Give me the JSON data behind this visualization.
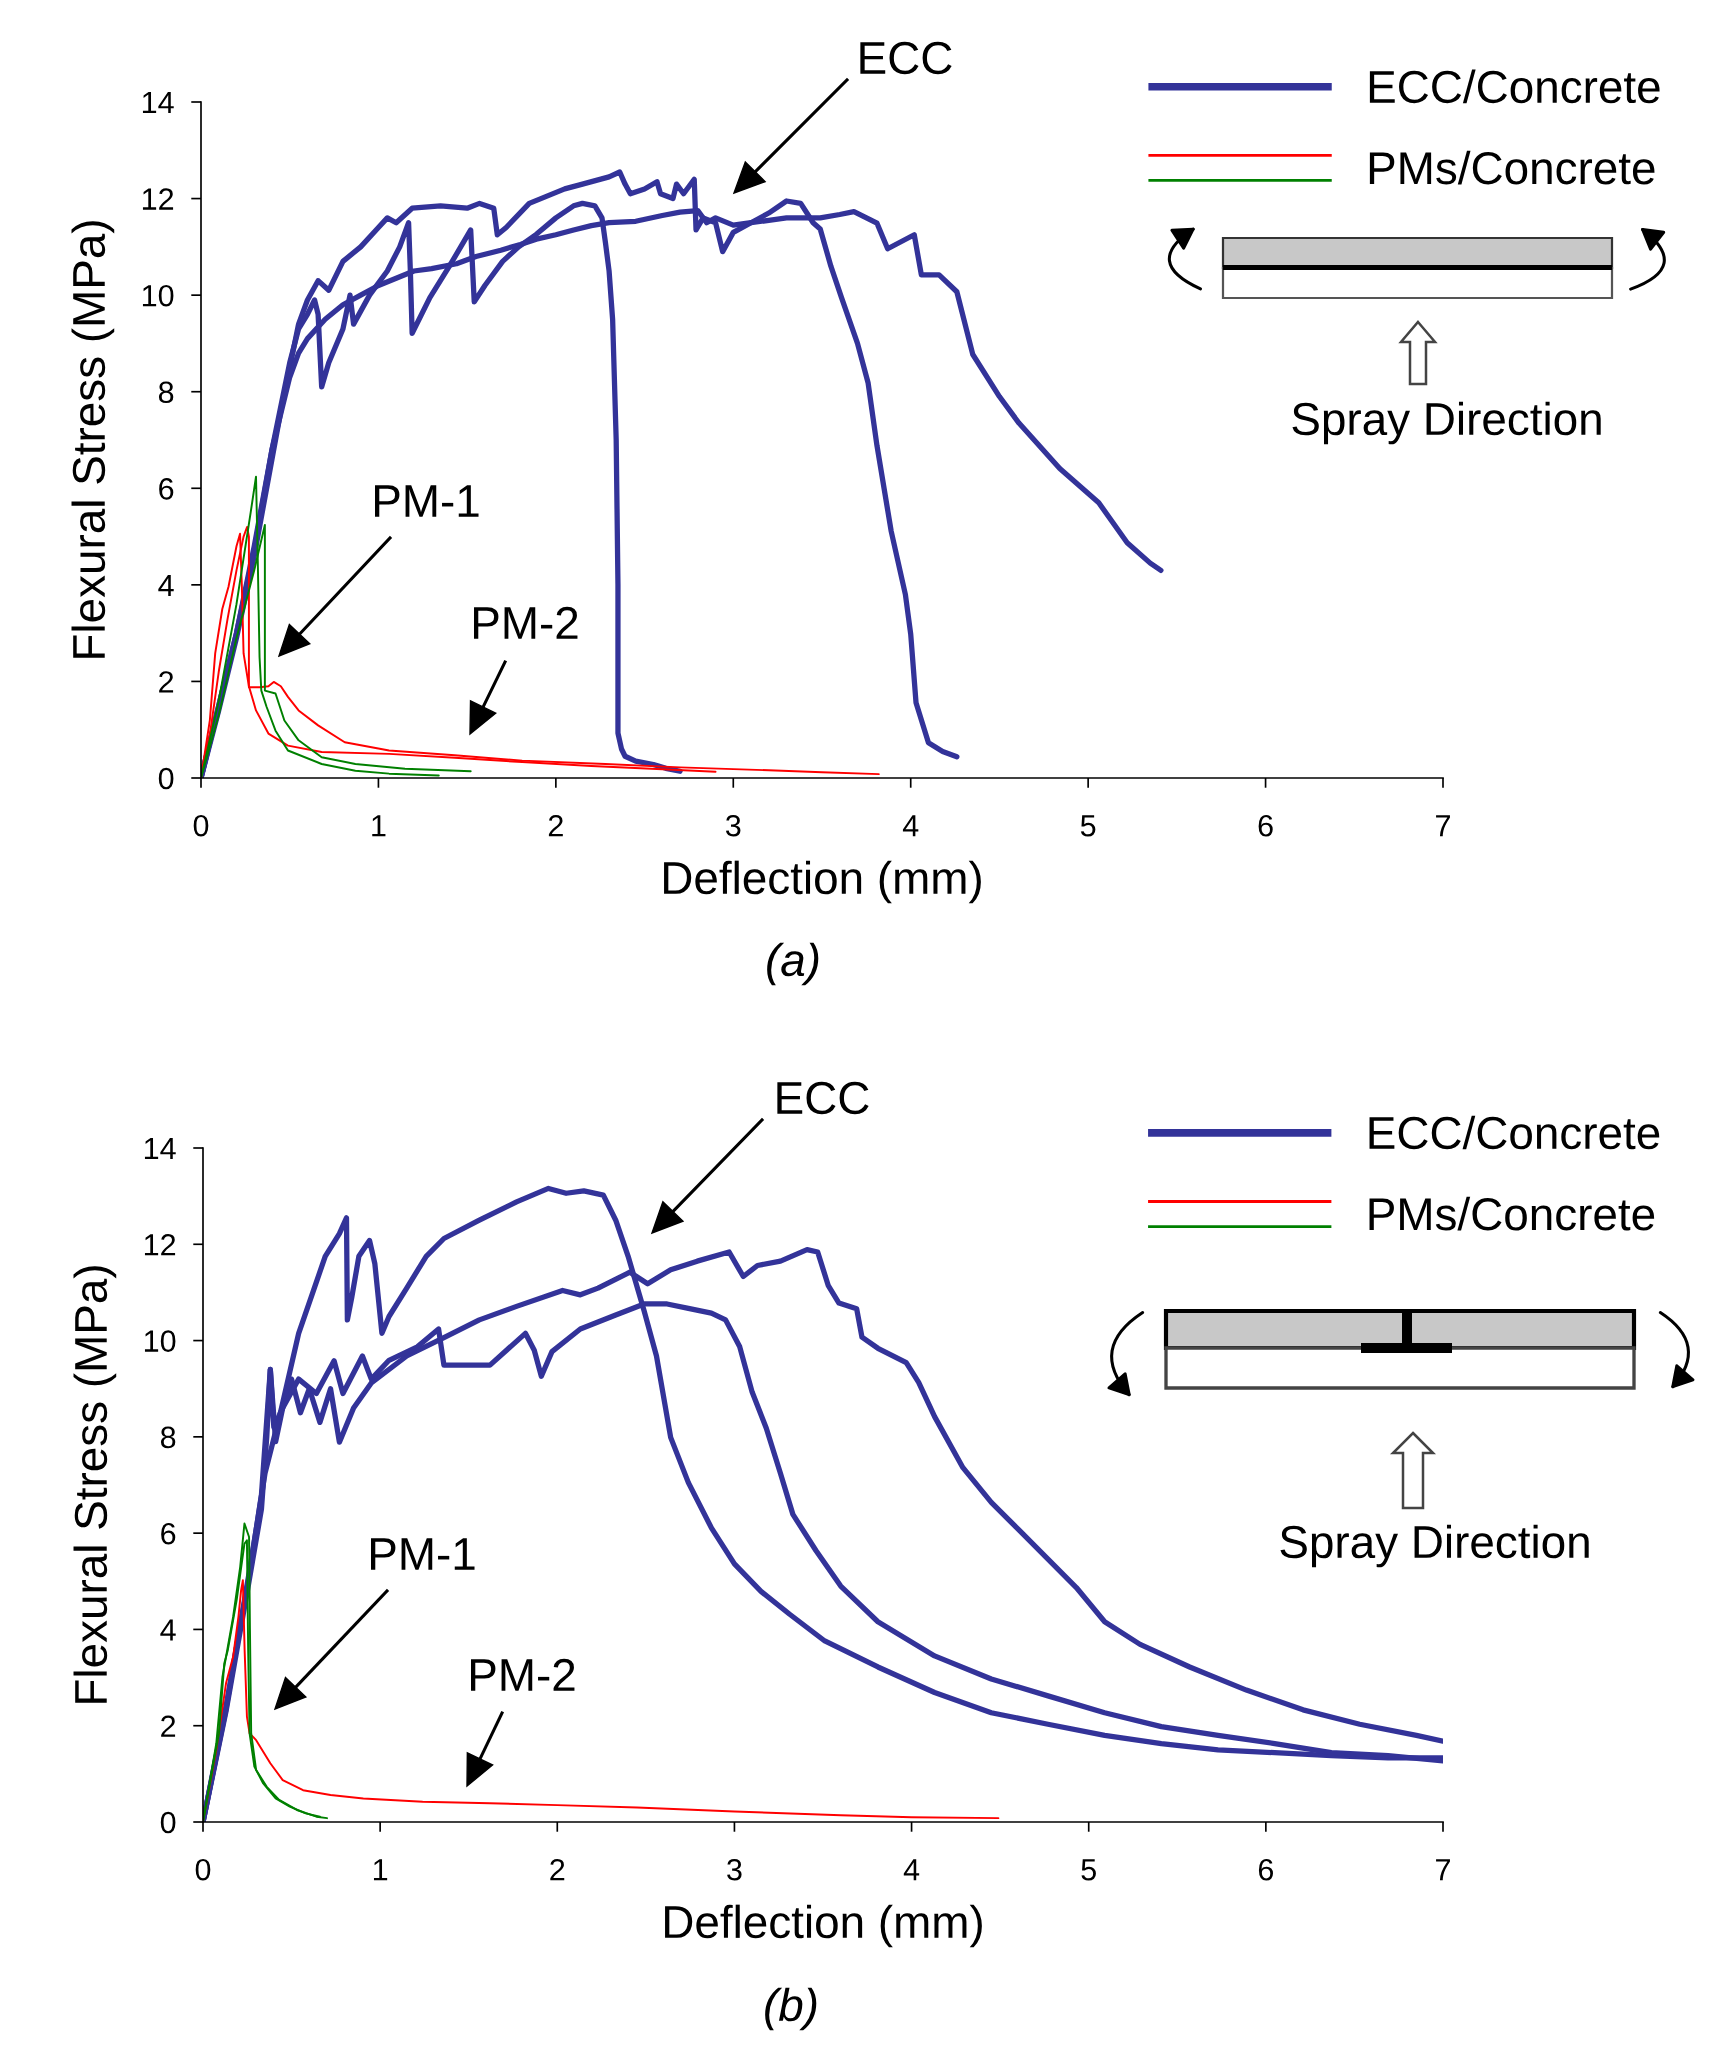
{
  "chart_data": [
    {
      "type": "line",
      "xlabel": "Deflection (mm)",
      "ylabel": "Flexural Stress (MPa)",
      "xlim": [
        0,
        7
      ],
      "ylim": [
        0,
        14
      ],
      "xticks": [
        0,
        1,
        2,
        3,
        4,
        5,
        6,
        7
      ],
      "yticks": [
        0,
        2,
        4,
        6,
        8,
        10,
        12,
        14
      ],
      "legend": "top right",
      "series": [
        {
          "name": "ECC/Concrete",
          "color": "#333399",
          "x": [
            0,
            0.1,
            0.2,
            0.3,
            0.4,
            0.45,
            0.5,
            0.55,
            0.6,
            0.66,
            0.72,
            0.8,
            0.9,
            1.0,
            1.05,
            1.1,
            1.19,
            1.35,
            1.5,
            1.57,
            1.65,
            1.67,
            1.72,
            1.85,
            1.95,
            2.05,
            2.15,
            2.3,
            2.36,
            2.39,
            2.42,
            2.5,
            2.57,
            2.59,
            2.66,
            2.68,
            2.72,
            2.78,
            2.79,
            2.83,
            2.9,
            2.94,
            3.0,
            3.1,
            3.2,
            3.3,
            3.38,
            3.45,
            3.49,
            3.55,
            3.61,
            3.7,
            3.76,
            3.81,
            3.89,
            3.97,
            4.0,
            4.03,
            4.1,
            4.18,
            4.26
          ],
          "values": [
            0,
            1.4,
            2.9,
            4.6,
            6.6,
            7.6,
            8.5,
            9.4,
            9.9,
            10.3,
            10.1,
            10.7,
            11.0,
            11.4,
            11.6,
            11.5,
            11.8,
            11.85,
            11.8,
            11.9,
            11.8,
            11.25,
            11.4,
            11.9,
            12.05,
            12.2,
            12.3,
            12.45,
            12.55,
            12.3,
            12.1,
            12.2,
            12.35,
            12.1,
            12.0,
            12.3,
            12.1,
            12.4,
            11.35,
            11.6,
            11.5,
            10.9,
            11.3,
            11.5,
            11.7,
            11.95,
            11.9,
            11.5,
            11.37,
            10.6,
            9.95,
            9.0,
            8.18,
            6.88,
            5.11,
            3.8,
            2.98,
            1.56,
            0.73,
            0.55,
            0.44
          ]
        },
        {
          "color": "#333399",
          "x": [
            0,
            0.1,
            0.2,
            0.3,
            0.4,
            0.5,
            0.55,
            0.6,
            0.64,
            0.66,
            0.68,
            0.72,
            0.8,
            0.84,
            0.86,
            0.95,
            1.05,
            1.12,
            1.17,
            1.18,
            1.19,
            1.29,
            1.4,
            1.52,
            1.54,
            1.6,
            1.7,
            1.79,
            1.89,
            2.0,
            2.1,
            2.15,
            2.22,
            2.26,
            2.28,
            2.3,
            2.32,
            2.34,
            2.35,
            2.35,
            2.37,
            2.39,
            2.45,
            2.55,
            2.62,
            2.7
          ],
          "values": [
            0,
            1.5,
            3.0,
            4.7,
            6.8,
            8.6,
            9.3,
            9.6,
            9.9,
            9.6,
            8.1,
            8.6,
            9.3,
            10.0,
            9.4,
            10.0,
            10.5,
            11.0,
            11.5,
            10.5,
            9.21,
            9.95,
            10.6,
            11.35,
            9.86,
            10.2,
            10.7,
            11.0,
            11.26,
            11.6,
            11.85,
            11.9,
            11.85,
            11.6,
            11.07,
            10.5,
            9.49,
            7.0,
            4.0,
            0.93,
            0.6,
            0.45,
            0.35,
            0.28,
            0.2,
            0.14
          ]
        },
        {
          "color": "#333399",
          "x": [
            0,
            0.1,
            0.2,
            0.3,
            0.4,
            0.5,
            0.55,
            0.6,
            0.7,
            0.8,
            0.9,
            1.0,
            1.1,
            1.2,
            1.3,
            1.44,
            1.55,
            1.69,
            1.8,
            1.89,
            2.0,
            2.1,
            2.2,
            2.3,
            2.45,
            2.6,
            2.7,
            2.8,
            2.85,
            2.9,
            3.0,
            3.1,
            3.2,
            3.3,
            3.49,
            3.6,
            3.68,
            3.81,
            3.87,
            4.02,
            4.06,
            4.16,
            4.26,
            4.35,
            4.5,
            4.61,
            4.84,
            5.06,
            5.22,
            5.35,
            5.41
          ],
          "values": [
            0,
            1.5,
            3.0,
            4.8,
            6.8,
            8.3,
            8.8,
            9.1,
            9.5,
            9.8,
            10.0,
            10.2,
            10.35,
            10.5,
            10.55,
            10.65,
            10.8,
            10.93,
            11.05,
            11.16,
            11.25,
            11.35,
            11.44,
            11.5,
            11.53,
            11.65,
            11.72,
            11.75,
            11.5,
            11.6,
            11.45,
            11.5,
            11.55,
            11.6,
            11.6,
            11.67,
            11.73,
            11.49,
            10.96,
            11.25,
            10.42,
            10.42,
            10.07,
            8.77,
            7.9,
            7.35,
            6.41,
            5.7,
            4.87,
            4.45,
            4.3
          ]
        },
        {
          "name": "PMs/Concrete",
          "color": "#ff0000",
          "x": [
            0,
            0.05,
            0.1,
            0.15,
            0.2,
            0.24,
            0.26,
            0.27,
            0.27,
            0.33,
            0.38,
            0.41,
            0.45,
            0.49,
            0.55,
            0.66,
            0.81,
            1.06,
            1.43,
            1.81,
            2.28,
            2.7,
            3.2,
            3.5,
            3.82
          ],
          "values": [
            0,
            0.9,
            2.2,
            3.3,
            4.3,
            5.0,
            5.2,
            5.0,
            1.88,
            1.88,
            1.9,
            1.99,
            1.9,
            1.68,
            1.4,
            1.09,
            0.74,
            0.57,
            0.47,
            0.36,
            0.29,
            0.22,
            0.16,
            0.12,
            0.08
          ]
        },
        {
          "color": "#ff0000",
          "x": [
            0,
            0.05,
            0.08,
            0.12,
            0.155,
            0.2,
            0.22,
            0.23,
            0.24,
            0.27,
            0.31,
            0.38,
            0.49,
            0.68,
            1.06,
            1.43,
            1.81,
            2.2,
            2.6,
            2.9
          ],
          "values": [
            0,
            1.2,
            2.58,
            3.5,
            3.96,
            4.8,
            5.06,
            4.0,
            2.58,
            1.9,
            1.4,
            0.92,
            0.67,
            0.54,
            0.5,
            0.42,
            0.33,
            0.25,
            0.18,
            0.13
          ]
        },
        {
          "color": "#008000",
          "x": [
            0,
            0.1,
            0.2,
            0.28,
            0.31,
            0.32,
            0.33,
            0.34,
            0.37,
            0.42,
            0.49,
            0.68,
            0.87,
            1.06,
            1.34
          ],
          "values": [
            0,
            1.6,
            3.6,
            5.5,
            6.24,
            4.5,
            2.5,
            1.81,
            1.47,
            0.98,
            0.57,
            0.29,
            0.15,
            0.09,
            0.05
          ]
        },
        {
          "color": "#008000",
          "x": [
            0,
            0.1,
            0.2,
            0.3,
            0.36,
            0.36,
            0.42,
            0.47,
            0.55,
            0.68,
            0.87,
            1.15,
            1.52
          ],
          "values": [
            0,
            1.3,
            2.9,
            4.3,
            5.24,
            1.81,
            1.75,
            1.19,
            0.78,
            0.43,
            0.29,
            0.19,
            0.14
          ]
        }
      ],
      "annotations": [
        "ECC",
        "PM-1",
        "PM-2",
        "Spray Direction",
        "(a)"
      ]
    },
    {
      "type": "line",
      "xlabel": "Deflection (mm)",
      "ylabel": "Flexural Stress (MPa)",
      "xlim": [
        0,
        7
      ],
      "ylim": [
        0,
        14
      ],
      "xticks": [
        0,
        1,
        2,
        3,
        4,
        5,
        6,
        7
      ],
      "yticks": [
        0,
        2,
        4,
        6,
        8,
        10,
        12,
        14
      ],
      "legend": "top right",
      "series": [
        {
          "name": "ECC/Concrete",
          "color": "#333399",
          "x": [
            0,
            0.13,
            0.26,
            0.31,
            0.35,
            0.44,
            0.54,
            0.62,
            0.69,
            0.77,
            0.81,
            0.815,
            0.84,
            0.88,
            0.94,
            0.97,
            1.01,
            1.05,
            1.15,
            1.26,
            1.36,
            1.56,
            1.77,
            1.95,
            2.05,
            2.15,
            2.26,
            2.33,
            2.4,
            2.49,
            2.56,
            2.64,
            2.74,
            2.87,
            3.0,
            3.15,
            3.31,
            3.51,
            3.81,
            4.13,
            4.45,
            4.77,
            5.09,
            5.41,
            5.73,
            6.05,
            6.37,
            6.69,
            7.0
          ],
          "values": [
            0,
            2.35,
            5.17,
            6.3,
            7.24,
            8.55,
            10.15,
            11.0,
            11.75,
            12.22,
            12.55,
            10.43,
            10.9,
            11.75,
            12.08,
            11.6,
            10.15,
            10.5,
            11.09,
            11.75,
            12.12,
            12.5,
            12.88,
            13.16,
            13.06,
            13.11,
            13.02,
            12.5,
            11.75,
            10.62,
            9.68,
            7.99,
            7.05,
            6.11,
            5.36,
            4.79,
            4.32,
            3.76,
            3.22,
            2.69,
            2.27,
            2.03,
            1.8,
            1.63,
            1.5,
            1.44,
            1.38,
            1.33,
            1.33
          ]
        },
        {
          "color": "#333399",
          "x": [
            0,
            0.13,
            0.26,
            0.33,
            0.36,
            0.38,
            0.4,
            0.45,
            0.5,
            0.55,
            0.6,
            0.66,
            0.72,
            0.77,
            0.85,
            0.95,
            1.15,
            1.36,
            1.56,
            1.77,
            2.03,
            2.13,
            2.23,
            2.41,
            2.51,
            2.64,
            2.79,
            2.97,
            3.05,
            3.13,
            3.26,
            3.41,
            3.47,
            3.53,
            3.59,
            3.69,
            3.72,
            3.81,
            3.97,
            4.04,
            4.13,
            4.29,
            4.45,
            4.61,
            4.77,
            4.93,
            5.09,
            5.29,
            5.57,
            5.89,
            6.21,
            6.53,
            6.85,
            7.0
          ],
          "values": [
            0,
            2.3,
            5.0,
            6.5,
            8.0,
            9.4,
            8.2,
            8.6,
            9.2,
            8.5,
            9.0,
            8.3,
            9.0,
            7.89,
            8.6,
            9.12,
            9.68,
            10.06,
            10.43,
            10.71,
            11.04,
            10.95,
            11.09,
            11.42,
            11.18,
            11.47,
            11.65,
            11.84,
            11.33,
            11.56,
            11.65,
            11.89,
            11.84,
            11.14,
            10.78,
            10.66,
            10.07,
            9.84,
            9.54,
            9.13,
            8.42,
            7.36,
            6.64,
            6.05,
            5.46,
            4.87,
            4.16,
            3.69,
            3.22,
            2.74,
            2.33,
            2.03,
            1.8,
            1.68
          ]
        },
        {
          "color": "#333399",
          "x": [
            0,
            0.13,
            0.26,
            0.33,
            0.38,
            0.41,
            0.45,
            0.54,
            0.64,
            0.74,
            0.79,
            0.9,
            0.95,
            1.05,
            1.21,
            1.33,
            1.36,
            1.46,
            1.62,
            1.82,
            1.87,
            1.91,
            1.97,
            2.13,
            2.33,
            2.49,
            2.62,
            2.74,
            2.87,
            2.95,
            3.03,
            3.1,
            3.18,
            3.26,
            3.33,
            3.46,
            3.6,
            3.81,
            4.13,
            4.45,
            4.77,
            5.09,
            5.41,
            5.73,
            6.05,
            6.37,
            6.69,
            7.0
          ],
          "values": [
            0,
            2.4,
            5.1,
            6.8,
            9.4,
            7.9,
            8.6,
            9.2,
            8.9,
            9.58,
            8.9,
            9.68,
            9.2,
            9.59,
            9.87,
            10.24,
            9.49,
            9.49,
            9.49,
            10.15,
            9.8,
            9.26,
            9.77,
            10.24,
            10.53,
            10.76,
            10.76,
            10.67,
            10.57,
            10.43,
            9.87,
            8.93,
            8.18,
            7.24,
            6.39,
            5.64,
            4.9,
            4.16,
            3.45,
            2.97,
            2.62,
            2.27,
            1.98,
            1.8,
            1.63,
            1.44,
            1.38,
            1.27
          ]
        },
        {
          "name": "PMs/Concrete",
          "color": "#ff0000",
          "x": [
            0,
            0.075,
            0.13,
            0.17,
            0.2,
            0.215,
            0.225,
            0.235,
            0.248,
            0.263,
            0.3,
            0.38,
            0.45,
            0.565,
            0.72,
            0.905,
            1.24,
            1.62,
            2.0,
            2.45,
            3.0,
            3.6,
            4.0,
            4.49
          ],
          "values": [
            0,
            1.49,
            2.88,
            3.43,
            4.26,
            4.81,
            5.02,
            3.57,
            2.19,
            1.84,
            1.7,
            1.22,
            0.87,
            0.66,
            0.56,
            0.49,
            0.42,
            0.39,
            0.35,
            0.3,
            0.22,
            0.14,
            0.1,
            0.08
          ]
        },
        {
          "color": "#008000",
          "x": [
            0,
            0.075,
            0.11,
            0.13,
            0.17,
            0.21,
            0.234,
            0.26,
            0.265,
            0.272,
            0.3,
            0.36,
            0.43,
            0.53,
            0.64,
            0.7
          ],
          "values": [
            0,
            1.63,
            3.02,
            3.43,
            4.26,
            5.3,
            6.2,
            5.92,
            4.0,
            1.84,
            1.08,
            0.73,
            0.46,
            0.25,
            0.11,
            0.08
          ]
        },
        {
          "color": "#008000",
          "x": [
            0,
            0.09,
            0.12,
            0.14,
            0.19,
            0.234,
            0.248,
            0.255,
            0.263,
            0.29,
            0.34,
            0.41,
            0.49,
            0.58,
            0.66
          ],
          "values": [
            0,
            1.84,
            3.29,
            3.57,
            4.61,
            5.78,
            5.85,
            3.57,
            1.84,
            1.15,
            0.8,
            0.49,
            0.32,
            0.18,
            0.11
          ]
        }
      ],
      "annotations": [
        "ECC",
        "PM-1",
        "PM-2",
        "Spray Direction",
        "(b)"
      ]
    }
  ]
}
